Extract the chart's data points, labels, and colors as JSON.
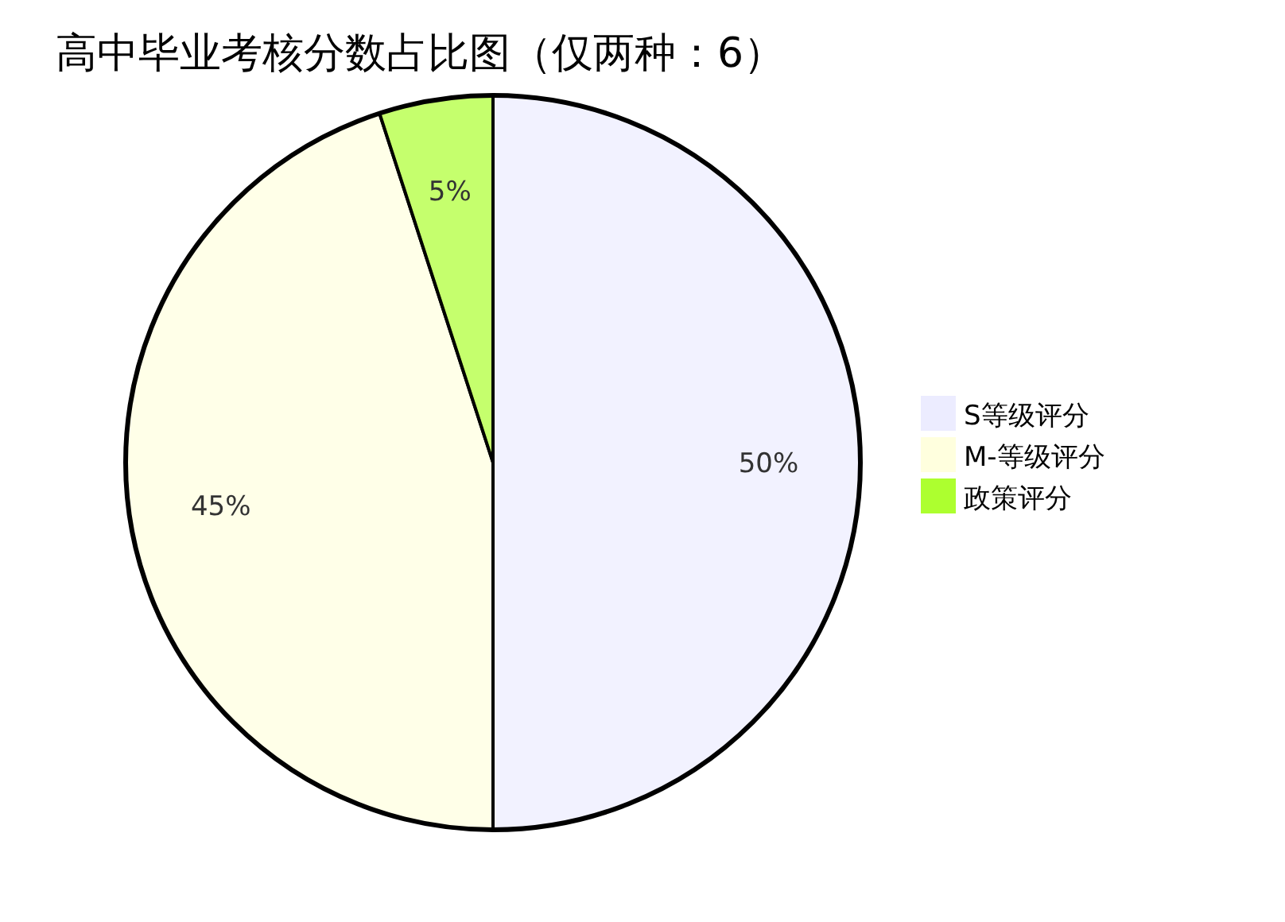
{
  "chart_data": {
    "type": "pie",
    "title": "高中毕业考核分数占比图（仅两种：6）",
    "categories": [
      "S等级评分",
      "M-等级评分",
      "政策评分"
    ],
    "values": [
      50,
      45,
      5
    ],
    "colors": [
      "#ececff",
      "#ffffde",
      "#adff2f"
    ],
    "value_labels": [
      "50%",
      "45%",
      "5%"
    ],
    "legend": "right"
  }
}
